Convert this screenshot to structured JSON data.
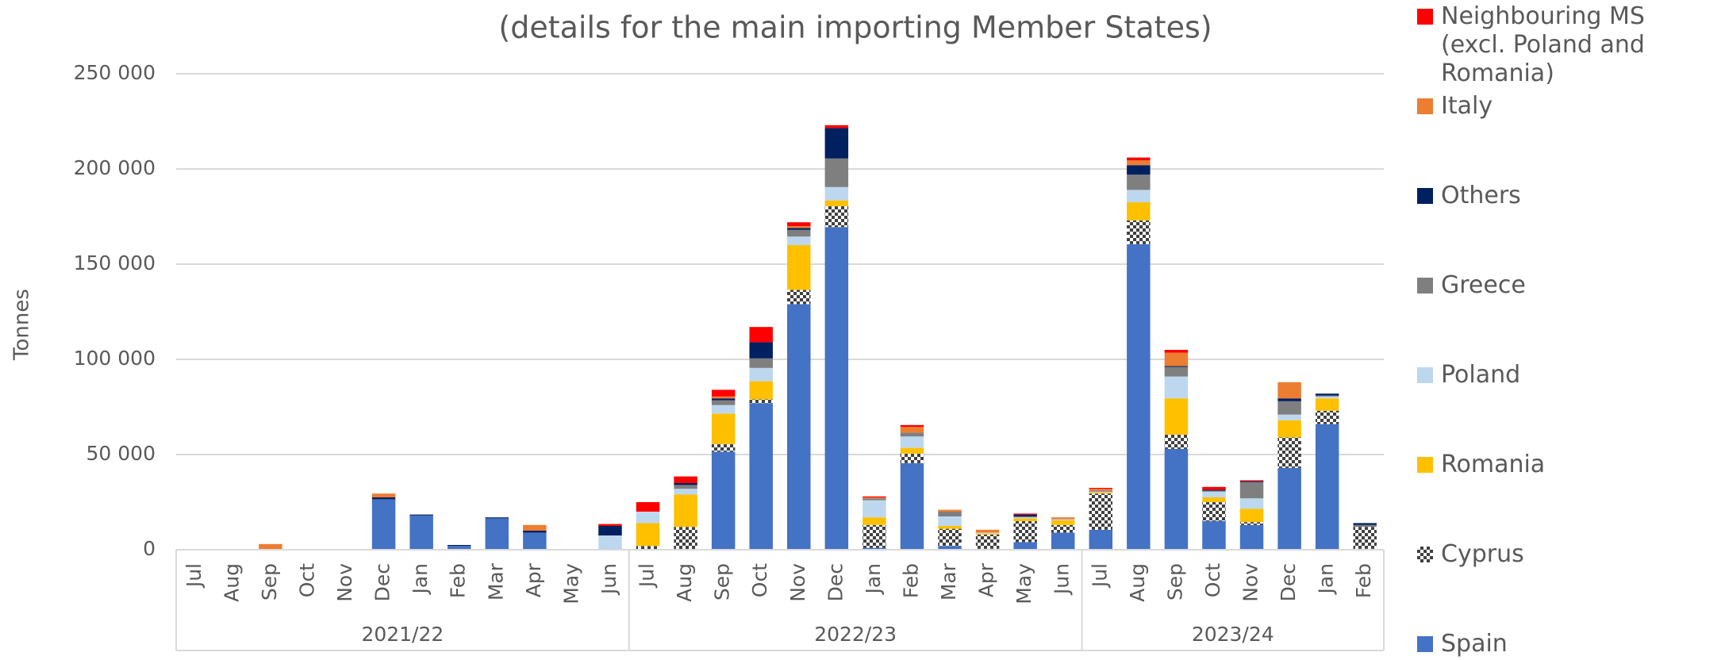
{
  "chart_data": {
    "type": "stacked_bar",
    "title": "(details for the main importing Member States)",
    "y_label": "Tonnes",
    "categories": [
      "Jul",
      "Aug",
      "Sep",
      "Oct",
      "Nov",
      "Dec",
      "Jan",
      "Feb",
      "Mar",
      "Apr",
      "May",
      "Jun",
      "Jul",
      "Aug",
      "Sep",
      "Oct",
      "Nov",
      "Dec",
      "Jan",
      "Feb",
      "Mar",
      "Apr",
      "May",
      "Jun",
      "Jul",
      "Aug",
      "Sep",
      "Oct",
      "Nov",
      "Dec",
      "Jan",
      "Feb"
    ],
    "category_groups": [
      {
        "label": "2021/22",
        "size": 12
      },
      {
        "label": "2022/23",
        "size": 12
      },
      {
        "label": "2023/24",
        "size": 8
      }
    ],
    "ylim": [
      0,
      250000
    ],
    "yticks": [
      0,
      {
        "value": 50000,
        "label": "50 000"
      },
      {
        "value": 100000,
        "label": "100 000"
      },
      {
        "value": 150000,
        "label": "150 000"
      },
      {
        "value": 200000,
        "label": "200 000"
      },
      {
        "value": 250000,
        "label": "250 000"
      }
    ],
    "grid": true,
    "legend": "right",
    "series": [
      {
        "name": "Spain",
        "color": "#4472c4",
        "values": [
          0,
          0,
          0,
          0,
          0,
          26500,
          18000,
          2000,
          16500,
          9000,
          0,
          0,
          0,
          0,
          51500,
          77000,
          129000,
          169500,
          1000,
          45500,
          2000,
          500,
          4000,
          9000,
          10500,
          160500,
          53000,
          15000,
          13000,
          43000,
          66000,
          500
        ]
      },
      {
        "name": "Cyprus",
        "color": "#404040",
        "pattern": "checker",
        "values": [
          0,
          0,
          0,
          0,
          0,
          0,
          0,
          0,
          0,
          0,
          0,
          0,
          2000,
          12000,
          4000,
          2000,
          7500,
          11000,
          12000,
          5000,
          9000,
          7500,
          11000,
          4000,
          19000,
          12500,
          7500,
          10000,
          1500,
          16000,
          7000,
          11500
        ]
      },
      {
        "name": "Romania",
        "color": "#ffc000",
        "values": [
          0,
          0,
          0,
          0,
          0,
          0,
          0,
          0,
          0,
          0,
          0,
          0,
          12000,
          17000,
          16000,
          9500,
          23500,
          3000,
          4000,
          3000,
          1500,
          500,
          1500,
          2500,
          500,
          9500,
          19000,
          2500,
          7000,
          9000,
          6500,
          0
        ]
      },
      {
        "name": "Poland",
        "color": "#bdd7ee",
        "values": [
          0,
          0,
          0,
          0,
          0,
          0,
          0,
          0,
          0,
          0,
          0,
          7500,
          6000,
          3000,
          4500,
          7000,
          4500,
          7000,
          9000,
          6000,
          5000,
          500,
          500,
          500,
          500,
          6500,
          11500,
          3000,
          5500,
          3000,
          1000,
          0
        ]
      },
      {
        "name": "Greece",
        "color": "#7f7f7f",
        "values": [
          0,
          0,
          0,
          0,
          0,
          0,
          0,
          0,
          0,
          0,
          0,
          0,
          0,
          2000,
          2500,
          5000,
          3500,
          15000,
          1000,
          2000,
          2500,
          0,
          500,
          0,
          500,
          8000,
          5000,
          500,
          8500,
          7000,
          500,
          1000
        ]
      },
      {
        "name": "Others",
        "color": "#002060",
        "values": [
          0,
          0,
          0,
          0,
          0,
          1000,
          500,
          500,
          500,
          1000,
          0,
          5000,
          0,
          1000,
          1000,
          8500,
          1000,
          16000,
          0,
          0,
          0,
          0,
          1000,
          0,
          0,
          5000,
          500,
          500,
          500,
          1500,
          1000,
          1000
        ]
      },
      {
        "name": "Italy",
        "color": "#ed7d31",
        "values": [
          0,
          0,
          3000,
          0,
          0,
          2000,
          0,
          0,
          0,
          3000,
          0,
          0,
          0,
          0,
          1000,
          0,
          1000,
          0,
          500,
          3000,
          1000,
          1500,
          0,
          1000,
          1000,
          2500,
          7000,
          0,
          0,
          8500,
          0,
          0
        ]
      },
      {
        "name": "Neighbouring MS (excl. Poland and Romania)",
        "color": "#ff0000",
        "values": [
          0,
          0,
          0,
          0,
          0,
          0,
          0,
          0,
          0,
          0,
          0,
          1000,
          5000,
          3500,
          3500,
          8000,
          2000,
          1500,
          500,
          1000,
          0,
          0,
          500,
          0,
          500,
          1500,
          1500,
          1500,
          500,
          0,
          0,
          0
        ]
      }
    ]
  }
}
